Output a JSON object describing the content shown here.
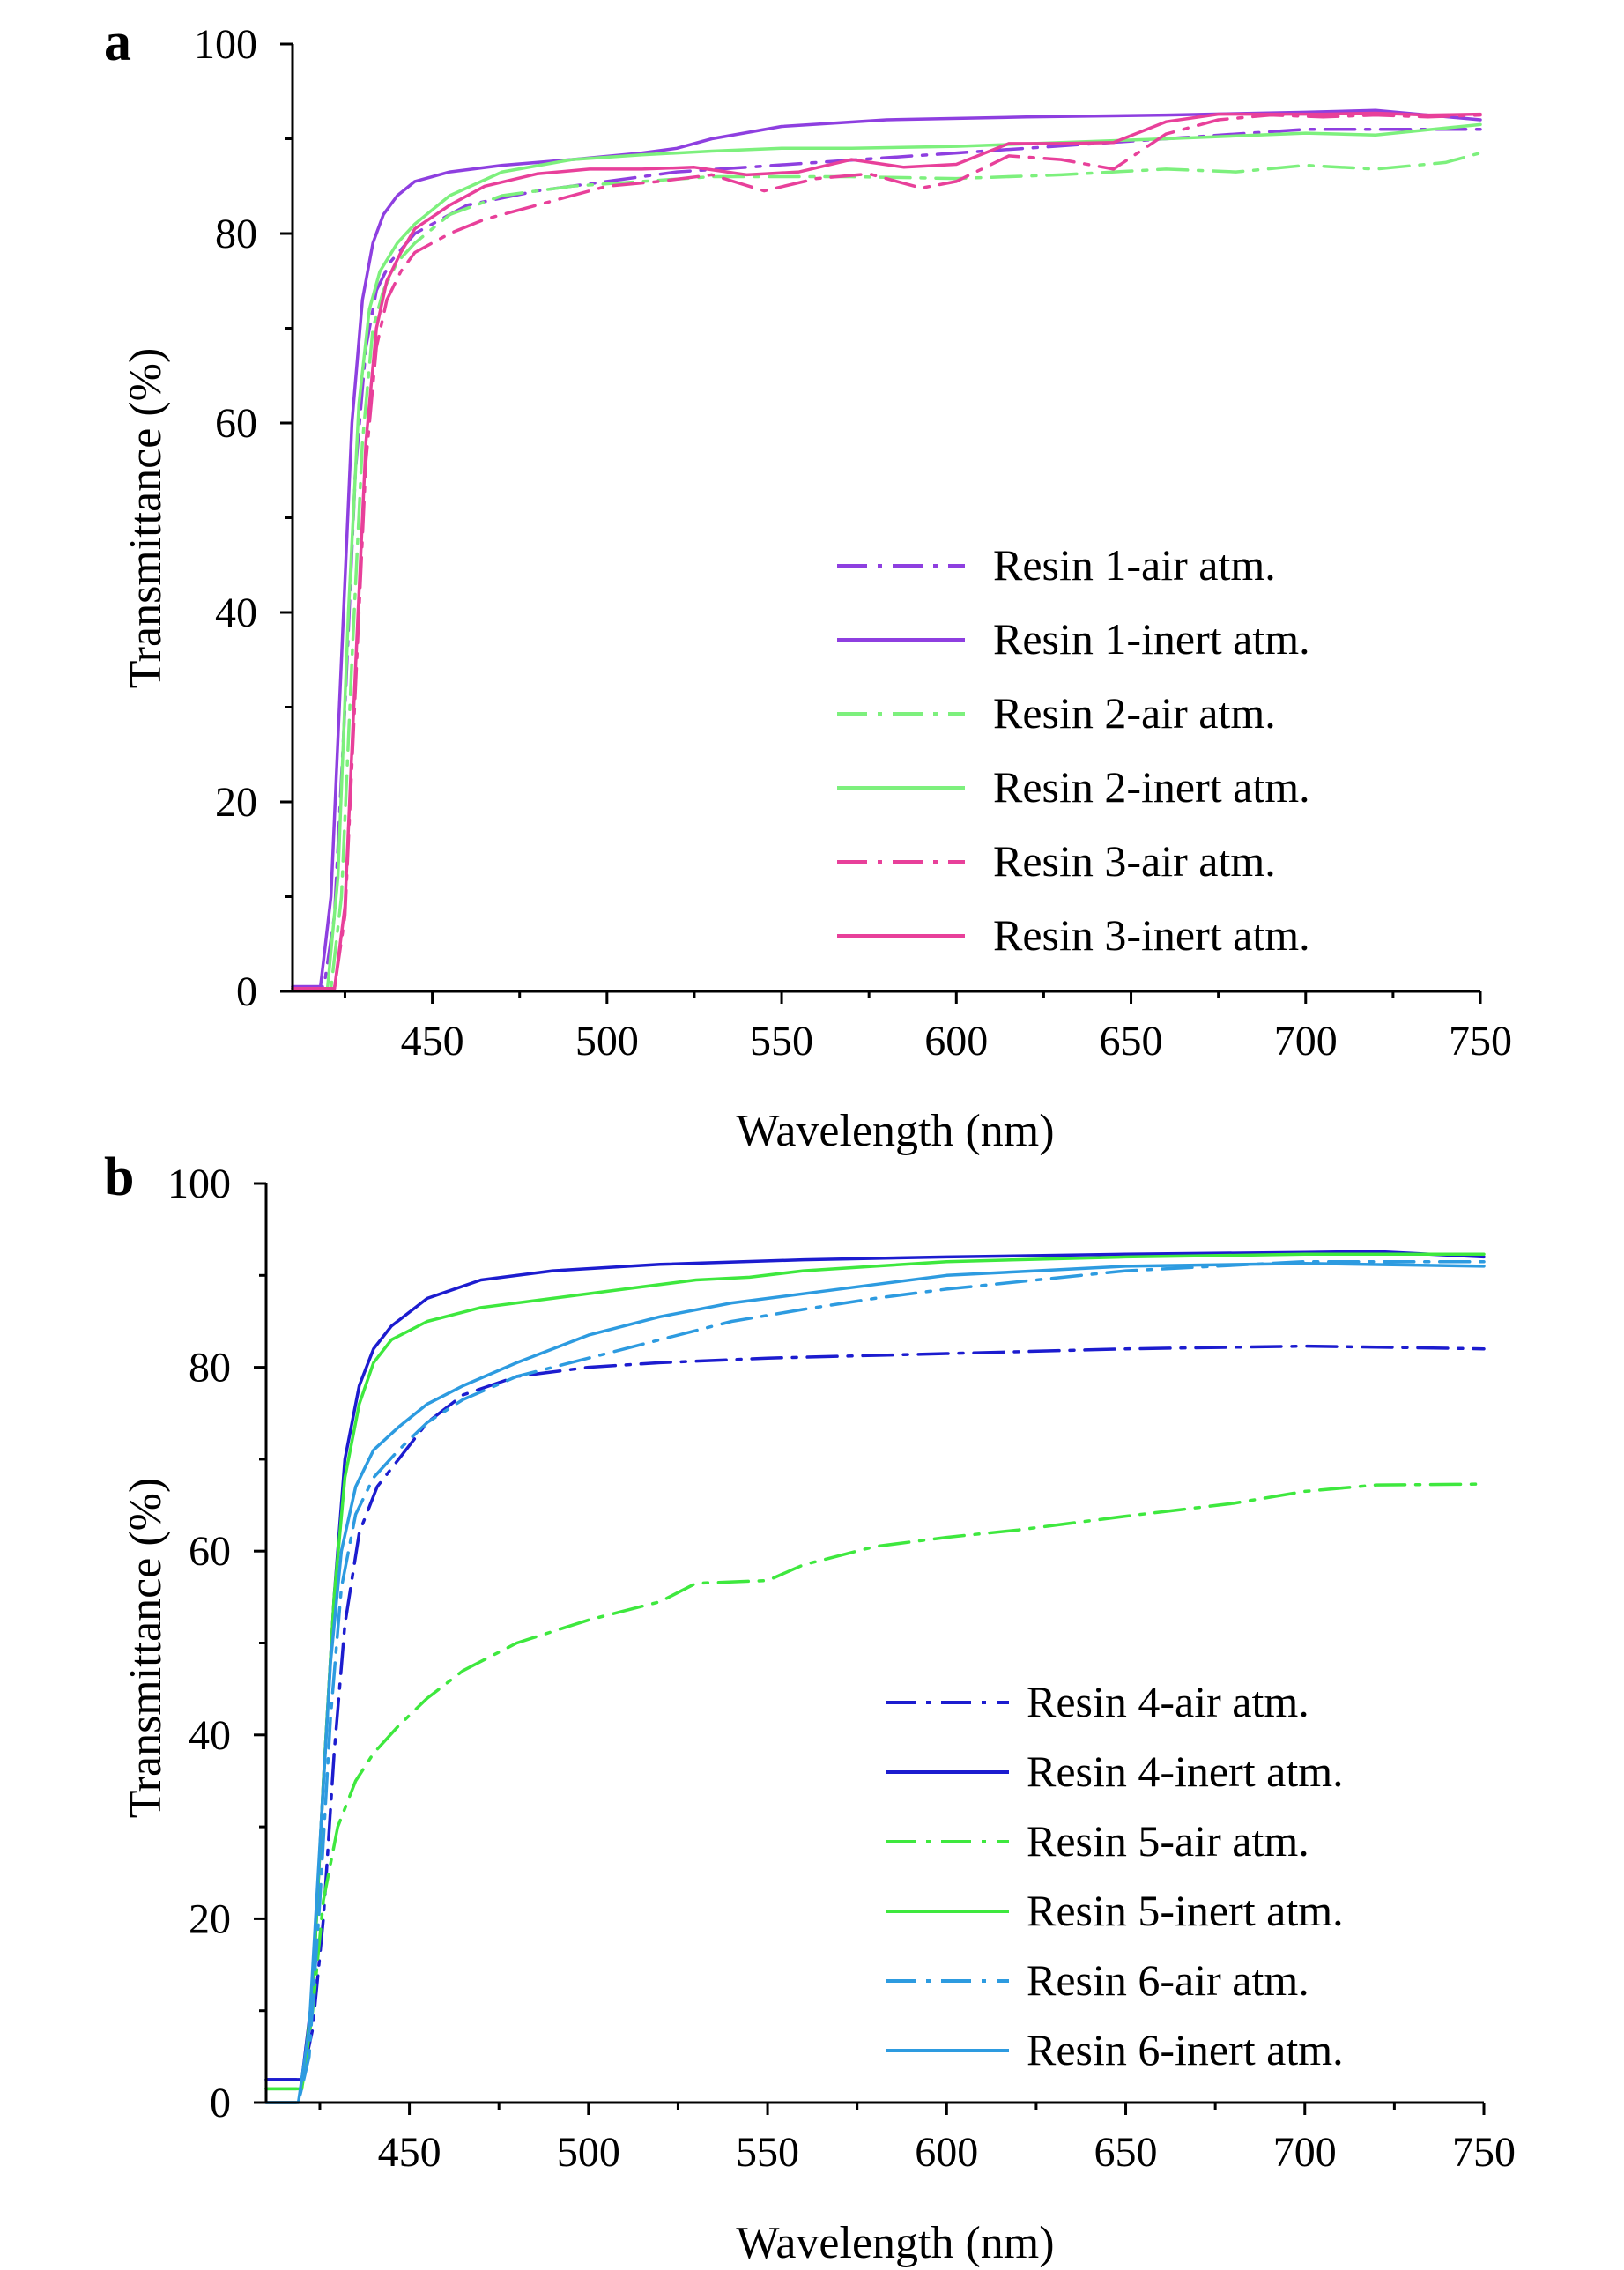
{
  "chart_data": [
    {
      "type": "line",
      "panel": "a",
      "xlabel": "Wavelength (nm)",
      "ylabel": "Transmittance (%)",
      "xlim": [
        410,
        750
      ],
      "ylim": [
        0,
        100
      ],
      "xticks": [
        450,
        500,
        550,
        600,
        650,
        700,
        750
      ],
      "yticks": [
        0,
        20,
        40,
        60,
        80,
        100
      ],
      "legend_position": "center-right",
      "series": [
        {
          "name": "Resin 1-air atm.",
          "color": "#8e3fe0",
          "style": "dashdot",
          "x": [
            410,
            419,
            422,
            425,
            428,
            431,
            434,
            438,
            445,
            460,
            480,
            500,
            520,
            540,
            560,
            580,
            600,
            620,
            640,
            660,
            680,
            700,
            720,
            750
          ],
          "y": [
            0.5,
            0.5,
            8,
            30,
            55,
            68,
            74,
            77,
            80,
            83,
            84.5,
            85.5,
            86.5,
            87,
            87.5,
            88,
            88.5,
            89,
            89.5,
            90,
            90.5,
            91,
            91,
            91
          ]
        },
        {
          "name": "Resin 1-inert atm.",
          "color": "#8e3fe0",
          "style": "solid",
          "x": [
            410,
            418,
            421,
            424,
            427,
            430,
            433,
            436,
            440,
            445,
            455,
            470,
            490,
            510,
            520,
            530,
            550,
            580,
            620,
            660,
            700,
            720,
            750
          ],
          "y": [
            0.5,
            0.5,
            10,
            35,
            60,
            73,
            79,
            82,
            84,
            85.5,
            86.5,
            87.2,
            87.8,
            88.5,
            89,
            90,
            91.3,
            92,
            92.3,
            92.5,
            92.8,
            93,
            92
          ]
        },
        {
          "name": "Resin 2-air atm.",
          "color": "#7df07d",
          "style": "dashdot",
          "x": [
            410,
            421,
            424,
            427,
            430,
            433,
            436,
            440,
            445,
            455,
            470,
            490,
            510,
            530,
            550,
            570,
            600,
            630,
            660,
            680,
            700,
            720,
            740,
            750
          ],
          "y": [
            0.3,
            0.3,
            10,
            35,
            58,
            70,
            74,
            77,
            79,
            82,
            84,
            85,
            85.5,
            86,
            86,
            86,
            85.8,
            86.2,
            86.8,
            86.5,
            87.2,
            86.8,
            87.5,
            88.5
          ]
        },
        {
          "name": "Resin 2-inert atm.",
          "color": "#7df07d",
          "style": "solid",
          "x": [
            410,
            420,
            423,
            426,
            429,
            432,
            435,
            440,
            445,
            455,
            470,
            490,
            510,
            530,
            550,
            570,
            600,
            630,
            660,
            680,
            700,
            720,
            750
          ],
          "y": [
            0.3,
            0.3,
            12,
            40,
            62,
            72,
            76,
            79,
            81,
            84,
            86.5,
            87.8,
            88.3,
            88.7,
            89,
            89,
            89.2,
            89.6,
            90,
            90.3,
            90.6,
            90.4,
            91.5
          ]
        },
        {
          "name": "Resin 3-air atm.",
          "color": "#e8409a",
          "style": "dashdot",
          "x": [
            410,
            422,
            425,
            428,
            431,
            434,
            437,
            441,
            445,
            455,
            465,
            480,
            500,
            515,
            530,
            545,
            560,
            575,
            590,
            600,
            615,
            630,
            645,
            660,
            675,
            690,
            705,
            720,
            735,
            750
          ],
          "y": [
            0.3,
            0.3,
            8,
            32,
            56,
            68,
            73,
            76,
            78,
            80,
            81.5,
            83,
            85,
            85.5,
            86.2,
            84.5,
            85.8,
            86.3,
            84.8,
            85.5,
            88.2,
            87.8,
            86.8,
            90.5,
            92,
            92.5,
            92.3,
            92.5,
            92.3,
            92.5
          ]
        },
        {
          "name": "Resin 3-inert atm.",
          "color": "#e8409a",
          "style": "solid",
          "x": [
            410,
            422,
            425,
            428,
            431,
            434,
            437,
            441,
            445,
            455,
            465,
            480,
            495,
            510,
            525,
            540,
            555,
            570,
            585,
            600,
            615,
            630,
            645,
            660,
            675,
            690,
            705,
            720,
            735,
            750
          ],
          "y": [
            0.3,
            0.3,
            9,
            34,
            58,
            70,
            75,
            78,
            80.5,
            83,
            85,
            86.3,
            86.8,
            86.8,
            87,
            86.2,
            86.5,
            87.8,
            87,
            87.3,
            89.5,
            89.5,
            89.6,
            91.8,
            92.6,
            92.6,
            92.6,
            92.7,
            92.5,
            92.6
          ]
        }
      ]
    },
    {
      "type": "line",
      "panel": "b",
      "xlabel": "Wavelength (nm)",
      "ylabel": "Transmittance (%)",
      "xlim": [
        410,
        750
      ],
      "ylim": [
        0,
        100
      ],
      "xticks": [
        450,
        500,
        550,
        600,
        650,
        700,
        750
      ],
      "yticks": [
        0,
        20,
        40,
        60,
        80,
        100
      ],
      "legend_position": "center-right",
      "series": [
        {
          "name": "Resin 4-air atm.",
          "color": "#1c1ccf",
          "style": "dashdot",
          "x": [
            410,
            417,
            420,
            423,
            426,
            429,
            432,
            436,
            441,
            447,
            455,
            465,
            480,
            500,
            520,
            550,
            600,
            650,
            700,
            720,
            750
          ],
          "y": [
            2.5,
            2.5,
            2.5,
            8,
            20,
            38,
            52,
            62,
            67,
            70,
            74,
            77,
            79,
            80,
            80.5,
            81,
            81.5,
            82,
            82.3,
            82.2,
            82
          ]
        },
        {
          "name": "Resin 4-inert atm.",
          "color": "#1c1ccf",
          "style": "solid",
          "x": [
            410,
            417,
            420,
            423,
            426,
            429,
            432,
            436,
            440,
            445,
            455,
            470,
            490,
            520,
            560,
            600,
            650,
            700,
            720,
            750
          ],
          "y": [
            2.5,
            2.5,
            2.5,
            12,
            35,
            55,
            70,
            78,
            82,
            84.5,
            87.5,
            89.5,
            90.5,
            91.2,
            91.7,
            92,
            92.3,
            92.5,
            92.6,
            92
          ]
        },
        {
          "name": "Resin 5-air atm.",
          "color": "#3ee83e",
          "style": "dashdot",
          "x": [
            410,
            417,
            420,
            423,
            426,
            430,
            435,
            440,
            447,
            455,
            465,
            480,
            500,
            520,
            530,
            550,
            560,
            580,
            600,
            620,
            650,
            680,
            700,
            720,
            750
          ],
          "y": [
            1.5,
            1.5,
            1.5,
            10,
            22,
            30,
            35,
            38,
            41,
            44,
            47,
            50,
            52.5,
            54.5,
            56.5,
            56.8,
            58.5,
            60.5,
            61.5,
            62.3,
            63.8,
            65.2,
            66.5,
            67.2,
            67.3
          ]
        },
        {
          "name": "Resin 5-inert atm.",
          "color": "#3ee83e",
          "style": "solid",
          "x": [
            410,
            417,
            420,
            423,
            426,
            429,
            432,
            436,
            440,
            445,
            455,
            470,
            490,
            510,
            530,
            545,
            560,
            580,
            600,
            650,
            700,
            750
          ],
          "y": [
            1.5,
            1.5,
            1.5,
            12,
            35,
            55,
            68,
            76,
            80.5,
            83,
            85,
            86.5,
            87.5,
            88.5,
            89.5,
            89.8,
            90.5,
            91,
            91.5,
            92,
            92.3,
            92.3
          ]
        },
        {
          "name": "Resin 6-air atm.",
          "color": "#2d9be0",
          "style": "dashdot",
          "x": [
            410,
            419,
            422,
            425,
            428,
            431,
            435,
            440,
            447,
            455,
            465,
            480,
            500,
            520,
            540,
            560,
            580,
            600,
            625,
            650,
            700,
            750
          ],
          "y": [
            0,
            0,
            5,
            22,
            42,
            56,
            64,
            68,
            71,
            74,
            76.5,
            79,
            81,
            83,
            85,
            86.3,
            87.5,
            88.5,
            89.5,
            90.5,
            91.5,
            91.5
          ]
        },
        {
          "name": "Resin 6-inert atm.",
          "color": "#2d9be0",
          "style": "solid",
          "x": [
            410,
            419,
            422,
            425,
            428,
            431,
            435,
            440,
            447,
            455,
            465,
            480,
            500,
            520,
            540,
            560,
            580,
            600,
            625,
            650,
            700,
            750
          ],
          "y": [
            0,
            0,
            8,
            28,
            48,
            60,
            67,
            71,
            73.5,
            76,
            78,
            80.5,
            83.5,
            85.5,
            87,
            88,
            89,
            90,
            90.5,
            91,
            91.3,
            91
          ]
        }
      ]
    }
  ]
}
